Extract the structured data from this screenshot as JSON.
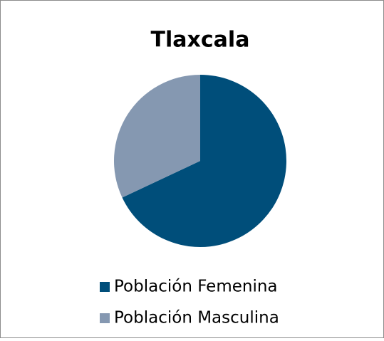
{
  "chart_data": {
    "type": "pie",
    "title": "Tlaxcala",
    "categories": [
      "Población Femenina",
      "Población Masculina"
    ],
    "values": [
      68,
      32
    ],
    "colors": [
      "#004e7a",
      "#8598b1"
    ],
    "legend": "bottom"
  }
}
